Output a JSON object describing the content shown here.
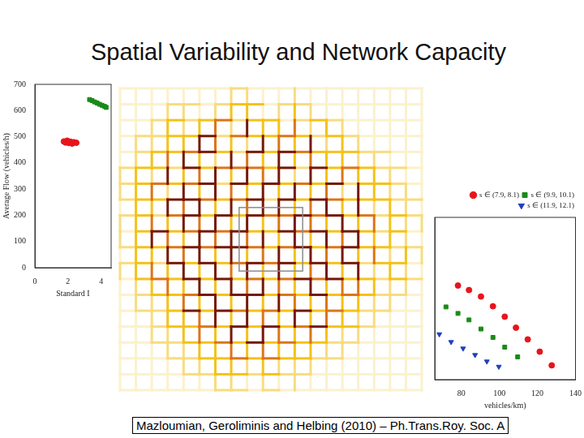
{
  "slide_title": "Spatial Variability and Network Capacity",
  "citation": "Mazloumian, Geroliminis and Helbing (2010) – Ph.Trans.Roy. Soc. A",
  "chart_data": [
    {
      "type": "scatter",
      "ylabel": "Average Flow (vehicles/h)",
      "xlabel": "Standard I",
      "xlim": [
        0,
        4.6
      ],
      "xticks": [
        0,
        2,
        4
      ],
      "ylim": [
        0,
        700
      ],
      "yticks": [
        0,
        100,
        200,
        300,
        400,
        500,
        600,
        700
      ],
      "grid": false,
      "series": [
        {
          "color": "#e8141c",
          "marker": "circle",
          "x": [
            1.75,
            1.85,
            1.95,
            2.05,
            2.15,
            2.25,
            2.35,
            2.5
          ],
          "values": [
            482,
            478,
            485,
            476,
            481,
            474,
            479,
            477
          ]
        },
        {
          "color": "#1a8a1a",
          "marker": "square",
          "x": [
            3.3,
            3.45,
            3.6,
            3.75,
            3.9,
            4.05,
            4.2,
            4.3
          ],
          "values": [
            642,
            638,
            633,
            629,
            624,
            620,
            616,
            612
          ]
        }
      ]
    },
    {
      "type": "scatter",
      "xlabel": "vehicles/km)",
      "xlim": [
        66,
        140
      ],
      "xticks": [
        80,
        100,
        120,
        140
      ],
      "ylim": [
        0,
        250
      ],
      "tick_labels": "x",
      "grid": false,
      "legend": "upper right",
      "series": [
        {
          "name": "s ∈ (7.9, 8.1)",
          "color": "#e8141c",
          "marker": "circle",
          "x": [
            78.2,
            84,
            90.3,
            96.6,
            102.8,
            108.7,
            114.9,
            121.2,
            127.5
          ],
          "values": [
            145,
            138,
            128,
            113,
            97,
            80,
            62,
            43,
            22
          ]
        },
        {
          "name": "s ∈ (9.9, 10.1)",
          "color": "#1a8a1a",
          "marker": "square",
          "x": [
            71.9,
            78.2,
            84,
            90.3,
            96.6,
            102.8,
            109.6
          ],
          "values": [
            112,
            102,
            92,
            78,
            65,
            50,
            35
          ]
        },
        {
          "name": "s ∈ (11.9, 12.1)",
          "color": "#1f3fbf",
          "marker": "triangle_down",
          "x": [
            68.4,
            74.6,
            80.9,
            87.2,
            93.4,
            99.7
          ],
          "values": [
            70,
            58,
            48,
            38,
            28,
            20
          ]
        }
      ]
    }
  ],
  "network": {
    "type": "grid_network",
    "colors": [
      "#fbf1cc",
      "#f8dc7e",
      "#f4c21a",
      "#de7418",
      "#761808"
    ],
    "horizontal_links": [
      [
        0,
        0,
        0,
        0,
        0,
        0,
        0,
        1,
        0,
        0,
        0,
        0,
        0,
        0,
        0,
        0,
        0,
        0,
        0
      ],
      [
        0,
        0,
        0,
        1,
        1,
        0,
        1,
        2,
        2,
        0,
        1,
        1,
        0,
        0,
        0,
        0,
        0,
        0,
        0
      ],
      [
        0,
        0,
        1,
        2,
        1,
        2,
        3,
        1,
        2,
        2,
        0,
        1,
        2,
        1,
        0,
        0,
        0,
        0,
        0
      ],
      [
        0,
        1,
        1,
        2,
        2,
        4,
        1,
        3,
        2,
        2,
        3,
        2,
        1,
        2,
        1,
        0,
        0,
        0,
        0
      ],
      [
        0,
        1,
        2,
        2,
        3,
        4,
        2,
        1,
        4,
        2,
        4,
        3,
        2,
        2,
        2,
        1,
        1,
        0,
        0
      ],
      [
        1,
        2,
        2,
        1,
        4,
        2,
        3,
        3,
        3,
        2,
        4,
        1,
        4,
        2,
        3,
        2,
        1,
        1,
        0
      ],
      [
        1,
        2,
        3,
        2,
        3,
        4,
        1,
        4,
        2,
        4,
        2,
        3,
        2,
        4,
        1,
        2,
        2,
        1,
        0
      ],
      [
        1,
        2,
        2,
        4,
        4,
        3,
        2,
        3,
        4,
        1,
        4,
        2,
        4,
        3,
        2,
        2,
        2,
        1,
        1
      ],
      [
        1,
        2,
        1,
        3,
        4,
        2,
        4,
        2,
        4,
        3,
        3,
        4,
        3,
        4,
        2,
        3,
        1,
        2,
        1
      ],
      [
        0,
        2,
        4,
        2,
        3,
        4,
        3,
        4,
        2,
        2,
        4,
        3,
        4,
        2,
        4,
        2,
        1,
        2,
        0
      ],
      [
        1,
        2,
        2,
        3,
        4,
        3,
        4,
        4,
        3,
        2,
        3,
        4,
        2,
        3,
        4,
        2,
        2,
        1,
        1
      ],
      [
        1,
        2,
        1,
        4,
        2,
        4,
        2,
        3,
        4,
        3,
        4,
        2,
        4,
        2,
        4,
        1,
        2,
        2,
        0
      ],
      [
        0,
        2,
        3,
        2,
        4,
        2,
        4,
        2,
        3,
        2,
        3,
        4,
        3,
        4,
        2,
        2,
        1,
        2,
        1
      ],
      [
        0,
        1,
        2,
        2,
        3,
        4,
        2,
        4,
        4,
        2,
        3,
        2,
        4,
        2,
        3,
        2,
        1,
        1,
        0
      ],
      [
        0,
        1,
        1,
        2,
        4,
        2,
        4,
        3,
        2,
        3,
        2,
        4,
        2,
        3,
        2,
        1,
        1,
        0,
        0
      ],
      [
        0,
        0,
        1,
        2,
        2,
        3,
        2,
        4,
        2,
        4,
        2,
        3,
        4,
        2,
        2,
        1,
        0,
        0,
        0
      ],
      [
        0,
        0,
        1,
        1,
        2,
        2,
        3,
        2,
        4,
        2,
        3,
        2,
        2,
        1,
        1,
        0,
        0,
        0,
        0
      ],
      [
        0,
        0,
        0,
        1,
        1,
        2,
        2,
        3,
        2,
        3,
        2,
        2,
        1,
        1,
        0,
        0,
        0,
        0,
        0
      ],
      [
        0,
        0,
        0,
        0,
        1,
        1,
        2,
        2,
        1,
        2,
        1,
        1,
        0,
        0,
        0,
        0,
        0,
        0,
        0
      ],
      [
        0,
        0,
        0,
        0,
        0,
        0,
        1,
        1,
        0,
        1,
        0,
        0,
        0,
        0,
        0,
        0,
        0,
        0,
        0
      ]
    ],
    "vertical_links": [
      [
        0,
        0,
        0,
        0,
        0,
        0,
        0,
        1,
        1,
        0,
        0,
        1,
        0,
        0,
        0,
        0,
        0,
        0,
        0,
        0
      ],
      [
        0,
        0,
        0,
        1,
        1,
        0,
        1,
        2,
        2,
        0,
        1,
        2,
        1,
        0,
        0,
        0,
        0,
        0,
        0,
        0
      ],
      [
        0,
        0,
        1,
        2,
        1,
        2,
        3,
        1,
        4,
        2,
        2,
        3,
        1,
        2,
        1,
        0,
        0,
        0,
        0,
        0
      ],
      [
        0,
        1,
        1,
        2,
        2,
        4,
        3,
        2,
        1,
        4,
        3,
        2,
        4,
        1,
        2,
        1,
        0,
        0,
        0,
        0
      ],
      [
        0,
        1,
        2,
        3,
        4,
        2,
        1,
        4,
        3,
        2,
        4,
        2,
        3,
        2,
        2,
        1,
        1,
        0,
        0,
        0
      ],
      [
        1,
        2,
        1,
        4,
        2,
        3,
        4,
        2,
        4,
        3,
        4,
        1,
        4,
        2,
        3,
        2,
        2,
        1,
        0,
        0
      ],
      [
        1,
        2,
        3,
        1,
        4,
        2,
        4,
        3,
        2,
        4,
        2,
        4,
        2,
        3,
        1,
        4,
        2,
        1,
        1,
        0
      ],
      [
        0,
        2,
        2,
        4,
        3,
        4,
        2,
        4,
        3,
        4,
        4,
        2,
        3,
        4,
        2,
        4,
        1,
        2,
        1,
        0
      ],
      [
        1,
        2,
        3,
        2,
        4,
        3,
        4,
        2,
        4,
        2,
        3,
        4,
        3,
        2,
        4,
        2,
        3,
        2,
        1,
        1
      ],
      [
        1,
        2,
        4,
        3,
        2,
        4,
        3,
        4,
        3,
        4,
        2,
        4,
        2,
        4,
        3,
        4,
        2,
        2,
        1,
        0
      ],
      [
        0,
        2,
        2,
        4,
        3,
        4,
        2,
        4,
        2,
        3,
        4,
        2,
        4,
        3,
        4,
        2,
        3,
        1,
        2,
        1
      ],
      [
        1,
        2,
        3,
        2,
        4,
        2,
        4,
        3,
        4,
        2,
        4,
        2,
        3,
        4,
        2,
        4,
        1,
        2,
        1,
        0
      ],
      [
        0,
        1,
        2,
        3,
        2,
        4,
        2,
        4,
        3,
        4,
        3,
        2,
        4,
        2,
        3,
        3,
        2,
        1,
        1,
        0
      ],
      [
        0,
        1,
        1,
        2,
        3,
        2,
        4,
        2,
        4,
        2,
        4,
        3,
        2,
        3,
        2,
        2,
        1,
        1,
        0,
        0
      ],
      [
        0,
        0,
        1,
        2,
        2,
        3,
        4,
        2,
        4,
        3,
        2,
        4,
        2,
        3,
        2,
        1,
        1,
        0,
        0,
        0
      ],
      [
        0,
        0,
        1,
        1,
        2,
        3,
        2,
        4,
        2,
        4,
        3,
        2,
        3,
        2,
        1,
        1,
        0,
        0,
        0,
        0
      ],
      [
        0,
        0,
        0,
        1,
        1,
        2,
        2,
        3,
        2,
        3,
        2,
        2,
        2,
        1,
        1,
        0,
        0,
        0,
        0,
        0
      ],
      [
        0,
        0,
        0,
        0,
        1,
        1,
        2,
        2,
        1,
        2,
        1,
        1,
        1,
        0,
        0,
        0,
        0,
        0,
        0,
        0
      ],
      [
        0,
        0,
        0,
        0,
        0,
        0,
        1,
        1,
        0,
        1,
        0,
        1,
        0,
        0,
        0,
        0,
        0,
        0,
        0,
        0
      ]
    ]
  }
}
